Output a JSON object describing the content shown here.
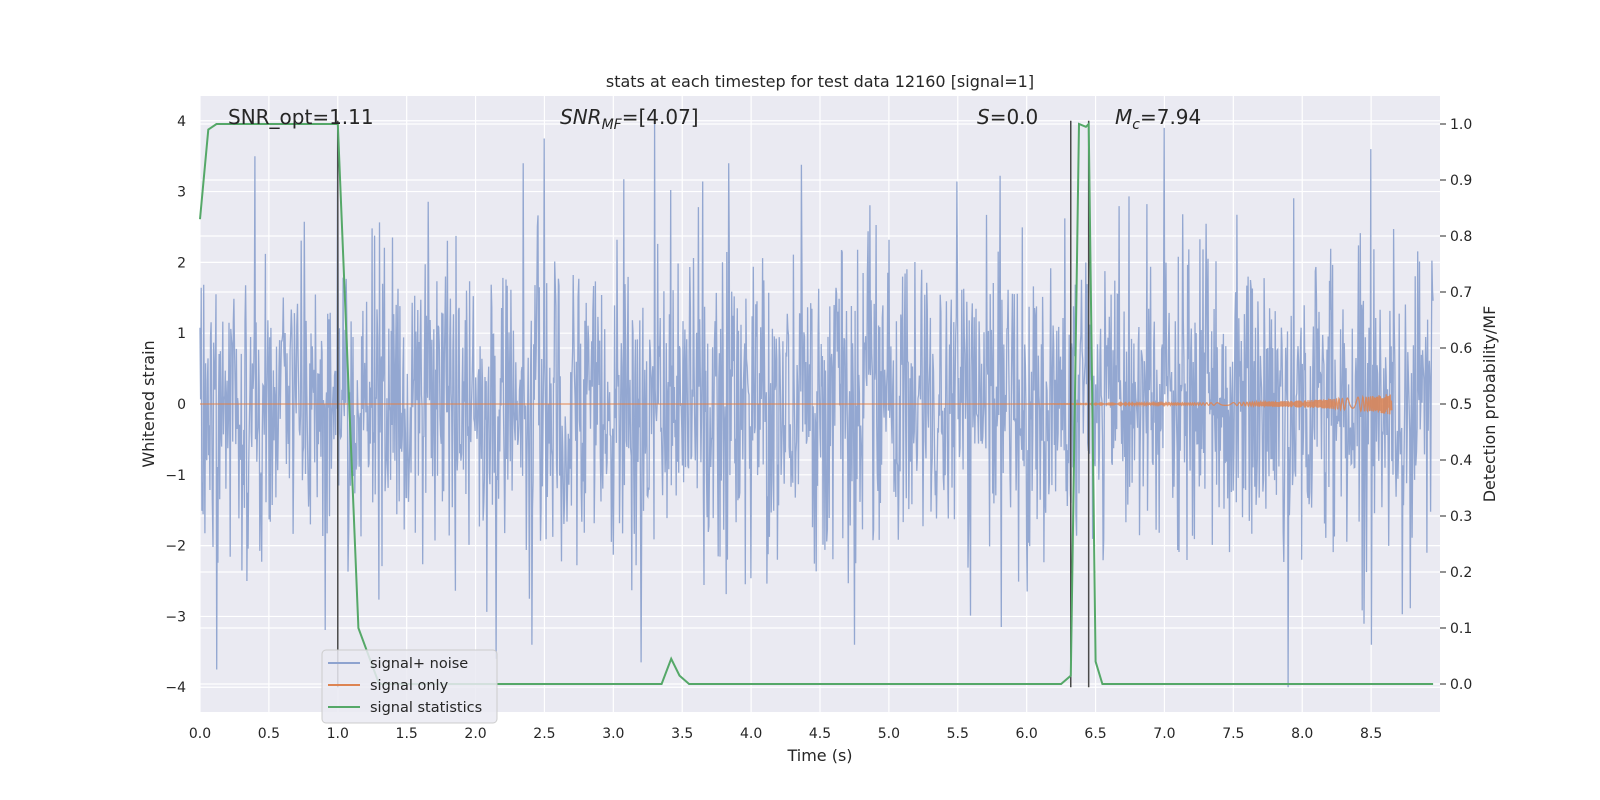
{
  "chart_data": {
    "type": "line",
    "title": "stats at each timestep for test data 12160 [signal=1]",
    "xlabel": "Time (s)",
    "ylabel": "Whitened strain",
    "y2label": "Detection probability/MF",
    "xlim": [
      0.0,
      9.0
    ],
    "ylim": [
      -4.35,
      4.35
    ],
    "y2lim": [
      -0.05,
      1.05
    ],
    "xticks": [
      "0.0",
      "0.5",
      "1.0",
      "1.5",
      "2.0",
      "2.5",
      "3.0",
      "3.5",
      "4.0",
      "4.5",
      "5.0",
      "5.5",
      "6.0",
      "6.5",
      "7.0",
      "7.5",
      "8.0",
      "8.5"
    ],
    "yticks": [
      "4",
      "3",
      "2",
      "1",
      "0",
      "−1",
      "−2",
      "−3",
      "−4"
    ],
    "y2ticks": [
      "1.0",
      "0.9",
      "0.8",
      "0.7",
      "0.6",
      "0.5",
      "0.4",
      "0.3",
      "0.2",
      "0.1",
      "0.0"
    ],
    "grid": true,
    "legend_position": "lower-left",
    "annotations": {
      "snr_opt": "SNR_opt=1.11",
      "snr_mf": "SNR_MF=[4.07]",
      "s_stat": "S=0.0",
      "mc": "M_c=7.94"
    },
    "series": [
      {
        "name": "signal+ noise",
        "color": "#8ea3cf",
        "description": "whitened strain noise, roughly ±2 with spikes to ±4",
        "spikes": [
          [
            0.12,
            -3.75
          ],
          [
            0.4,
            3.5
          ],
          [
            1.0,
            -2.9
          ],
          [
            1.0,
            3.9
          ],
          [
            2.15,
            -3.6
          ],
          [
            2.5,
            3.75
          ],
          [
            3.2,
            -3.65
          ],
          [
            3.3,
            4.0
          ],
          [
            7.0,
            3.9
          ],
          [
            7.9,
            -4.0
          ],
          [
            8.5,
            3.6
          ]
        ]
      },
      {
        "name": "signal only",
        "color": "#dd8452",
        "description": "near-zero chirp waveform growing towards ~8.6 s",
        "x": [
          0.0,
          6.0,
          7.5,
          8.0,
          8.3,
          8.5,
          8.65
        ],
        "amplitude": [
          0.0,
          0.0,
          0.02,
          0.05,
          0.08,
          0.11,
          0.15
        ]
      },
      {
        "name": "signal statistics",
        "color": "#55a868",
        "axis": "right",
        "x": [
          0.0,
          0.06,
          0.12,
          0.5,
          0.98,
          1.0,
          1.15,
          1.3,
          3.35,
          3.42,
          3.48,
          3.55,
          6.25,
          6.32,
          6.38,
          6.43,
          6.45,
          6.5,
          6.55,
          8.95
        ],
        "y": [
          0.83,
          0.99,
          1.0,
          1.0,
          1.0,
          1.0,
          0.1,
          0.0,
          0.0,
          0.045,
          0.015,
          0.0,
          0.0,
          0.015,
          1.0,
          0.995,
          1.0,
          0.04,
          0.0,
          0.0
        ]
      }
    ],
    "vlines": [
      1.0,
      6.32,
      6.45
    ],
    "vline_color": "#4a4a4a"
  }
}
